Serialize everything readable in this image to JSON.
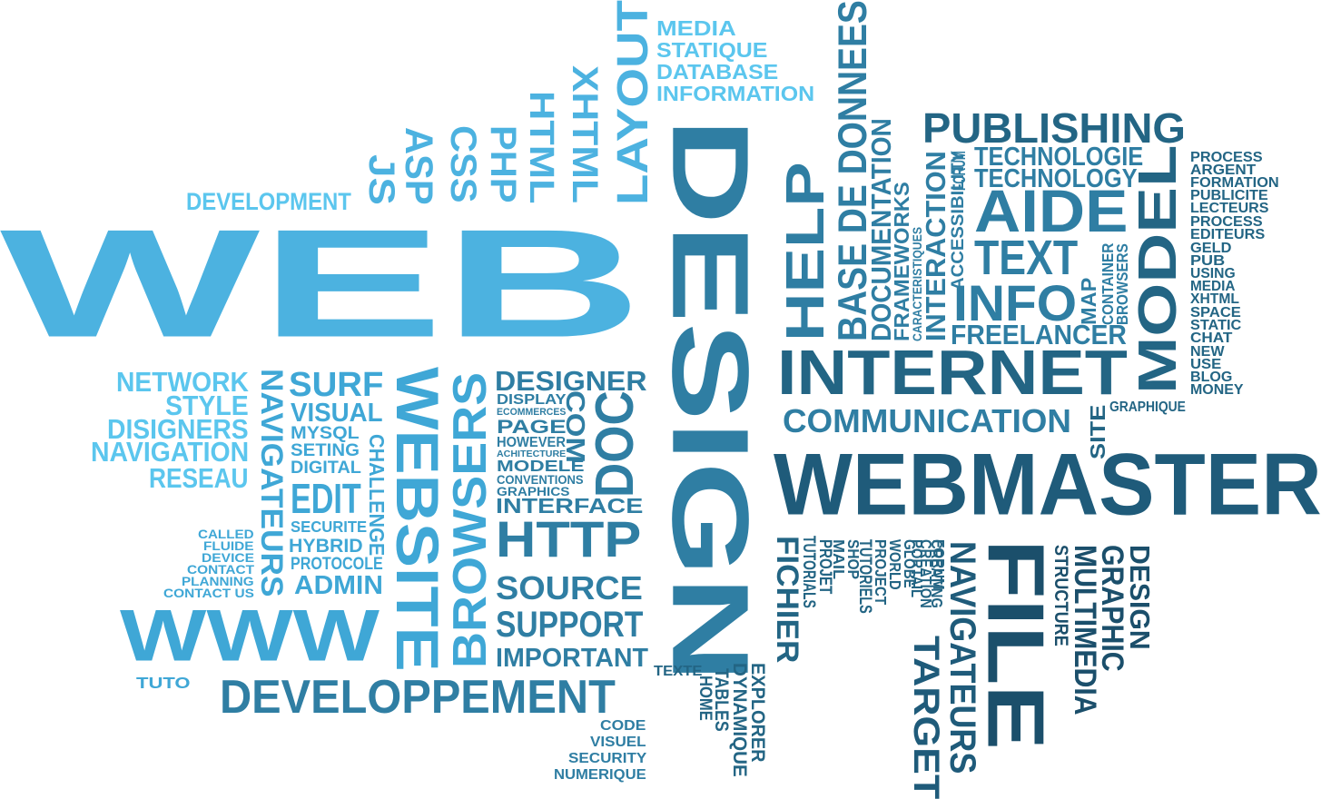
{
  "palette": {
    "sky": "#5bc6ee",
    "light": "#4cb2e0",
    "mid": "#3f9bc4",
    "steel": "#2f7ea3",
    "deep": "#236584",
    "navy": "#1b4f6b"
  },
  "words": {
    "web": "WEB",
    "design": "DESIGN",
    "webmaster": "WEBMASTER",
    "www": "WWW",
    "internet": "INTERNET",
    "developpement": "DEVELOPPEMENT",
    "development": "DEVELOPMENT",
    "publishing": "PUBLISHING",
    "technologie": "TECHNOLOGIE",
    "technology": "TECHNOLOGY",
    "aide": "AIDE",
    "text": "TEXT",
    "info": "INFO",
    "freelancer": "FREELANCER",
    "communication": "COMMUNICATION",
    "model": "MODEL",
    "media": "MEDIA",
    "statique": "STATIQUE",
    "database": "DATABASE",
    "information": "INFORMATION",
    "layout": "LAYOUT",
    "xhtml_top": "XHTML",
    "html": "HTML",
    "php": "PHP",
    "css": "CSS",
    "asp": "ASP",
    "js": "JS",
    "help": "HELP",
    "base_de_donnees": "BASE DE DONNEES",
    "documentation": "DOCUMENTATION",
    "frameworks": "FRAMEWORKS",
    "caracteristiques": "CARACTERISTIQUES",
    "interaction": "INTERACTION",
    "accessibility": "ACCESSIBILITY",
    "forum": "FORUM",
    "map": "MAP",
    "container": "CONTAINER",
    "browsers_small": "BROWSERS",
    "site": "SITE",
    "graphique": "GRAPHIQUE",
    "process": "PROCESS",
    "argent": "ARGENT",
    "formation": "FORMATION",
    "publicite": "PUBLICITE",
    "lecteurs": "LECTEURS",
    "process2": "PROCESS",
    "editeurs": "EDITEURS",
    "geld": "GELD",
    "pub": "PUB",
    "using": "USING",
    "media2": "MEDIA",
    "xhtml": "XHTML",
    "space": "SPACE",
    "static": "STATIC",
    "chat": "CHAT",
    "new": "NEW",
    "use": "USE",
    "blog": "BLOG",
    "money": "MONEY",
    "network": "NETWORK",
    "style": "STYLE",
    "disigners": "DISIGNERS",
    "navigation": "NAVIGATION",
    "reseau": "RESEAU",
    "navigateurs_left": "NAVIGATEURS",
    "surf": "SURF",
    "visual": "VISUAL",
    "mysql": "MYSQL",
    "seting": "SETING",
    "digital": "DIGITAL",
    "edit": "EDIT",
    "securite": "SECURITE",
    "hybrid": "HYBRID",
    "protocole": "PROTOCOLE",
    "admin": "ADMIN",
    "challenge": "CHALLENGE",
    "website": "WEBSITE",
    "browsers": "BROWSERS",
    "designer": "DESIGNER",
    "display": "DISPLAY",
    "ecommerces": "ECOMMERCES",
    "page": "PAGE",
    "however": "HOWEVER",
    "achitecture": "ACHITECTURE",
    "modele": "MODELE",
    "conventions": "CONVENTIONS",
    "graphics": "GRAPHICS",
    "interface": "INTERFACE",
    "com": "COM",
    "doc": "DOC",
    "http": "HTTP",
    "source": "SOURCE",
    "support": "SUPPORT",
    "important": "IMPORTANT",
    "called": "CALLED",
    "fluide": "FLUIDE",
    "device": "DEVICE",
    "contact": "CONTACT",
    "planning": "PLANNING",
    "contact_us": "CONTACT US",
    "tuto": "TUTO",
    "code": "CODE",
    "visuel": "VISUEL",
    "security": "SECURITY",
    "numerique": "NUMERIQUE",
    "texte": "TEXTE",
    "home": "HOME",
    "tables": "TABLES",
    "dynamique": "DYNAMIQUE",
    "explorer": "EXPLORER",
    "fichier": "FICHIER",
    "tutorials": "TUTORIALS",
    "projet": "PROJET",
    "mail": "MAIL",
    "shop": "SHOP",
    "tutoriels": "TUTORIELS",
    "project": "PROJECT",
    "world": "WORLD",
    "globe": "GLOBE",
    "portail": "PORTAIL",
    "creation": "CREATION",
    "creating": "CREATING",
    "forum2": "FORUM",
    "navigateurs": "NAVIGATEURS",
    "target": "TARGET",
    "file": "FILE",
    "structure": "STRUCTURE",
    "multimedia": "MULTIMEDIA",
    "graphic": "GRAPHIC",
    "design_small": "DESIGN"
  }
}
